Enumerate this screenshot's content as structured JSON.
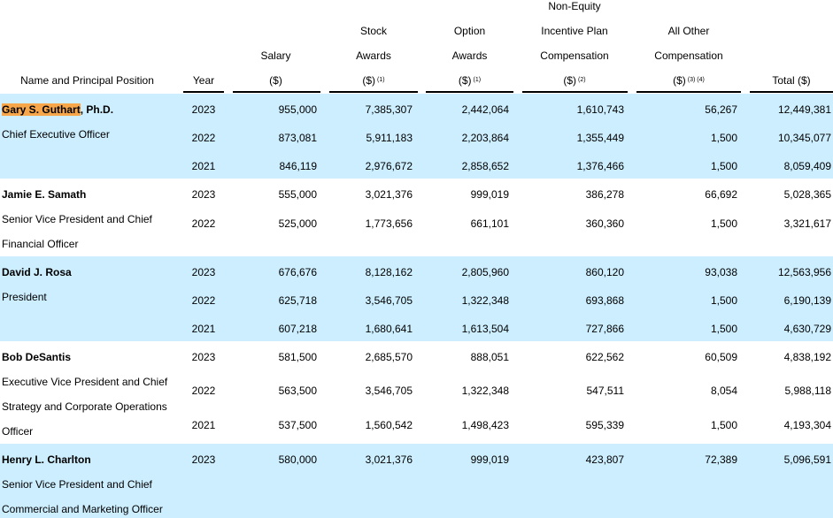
{
  "headers": {
    "name": "Name and Principal Position",
    "year": "Year",
    "salary": [
      "Salary",
      "($)"
    ],
    "stock": [
      "Stock",
      "Awards",
      "($)"
    ],
    "stock_sup": "(1)",
    "option": [
      "Option",
      "Awards",
      "($)"
    ],
    "option_sup": "(1)",
    "nonequity": [
      "Non-Equity",
      "Incentive Plan",
      "Compensation",
      "($)"
    ],
    "nonequity_sup": "(2)",
    "other": [
      "All Other",
      "Compensation",
      "($)"
    ],
    "other_sup": "(3) (4)",
    "total": "Total ($)"
  },
  "rows_style": {
    "shaded": "#cceeff",
    "highlight": "#f7a64a"
  },
  "executives": [
    {
      "name_highlight": "Gary S. Guthart",
      "name_rest": ", Ph.D.",
      "title_lines": [
        "Chief Executive Officer"
      ],
      "years": [
        [
          "2023",
          "955,000",
          "7,385,307",
          "2,442,064",
          "1,610,743",
          "56,267",
          "12,449,381"
        ],
        [
          "2022",
          "873,081",
          "5,911,183",
          "2,203,864",
          "1,355,449",
          "1,500",
          "10,345,077"
        ],
        [
          "2021",
          "846,119",
          "2,976,672",
          "2,858,652",
          "1,376,466",
          "1,500",
          "8,059,409"
        ]
      ]
    },
    {
      "name": "Jamie E. Samath",
      "title_lines": [
        "Senior Vice President and Chief",
        "Financial Officer"
      ],
      "years": [
        [
          "2023",
          "555,000",
          "3,021,376",
          "999,019",
          "386,278",
          "66,692",
          "5,028,365"
        ],
        [
          "2022",
          "525,000",
          "1,773,656",
          "661,101",
          "360,360",
          "1,500",
          "3,321,617"
        ]
      ]
    },
    {
      "name": "David J. Rosa",
      "title_lines": [
        "President"
      ],
      "years": [
        [
          "2023",
          "676,676",
          "8,128,162",
          "2,805,960",
          "860,120",
          "93,038",
          "12,563,956"
        ],
        [
          "2022",
          "625,718",
          "3,546,705",
          "1,322,348",
          "693,868",
          "1,500",
          "6,190,139"
        ],
        [
          "2021",
          "607,218",
          "1,680,641",
          "1,613,504",
          "727,866",
          "1,500",
          "4,630,729"
        ]
      ]
    },
    {
      "name": "Bob DeSantis",
      "title_lines": [
        "Executive Vice President and Chief",
        "Strategy and Corporate Operations",
        "Officer"
      ],
      "years": [
        [
          "2023",
          "581,500",
          "2,685,570",
          "888,051",
          "622,562",
          "60,509",
          "4,838,192"
        ],
        [
          "2022",
          "563,500",
          "3,546,705",
          "1,322,348",
          "547,511",
          "8,054",
          "5,988,118"
        ],
        [
          "2021",
          "537,500",
          "1,560,542",
          "1,498,423",
          "595,339",
          "1,500",
          "4,193,304"
        ]
      ]
    },
    {
      "name": "Henry L. Charlton",
      "title_lines": [
        "Senior Vice President and Chief",
        "Commercial and Marketing Officer"
      ],
      "years": [
        [
          "2023",
          "580,000",
          "3,021,376",
          "999,019",
          "423,807",
          "72,389",
          "5,096,591"
        ]
      ]
    }
  ]
}
